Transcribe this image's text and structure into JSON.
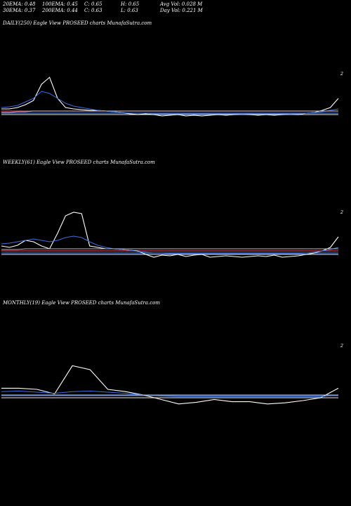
{
  "header": {
    "row1": [
      "20EMA: 0.48",
      "100EMA: 0.45",
      "C: 0.65",
      "H: 0.65",
      "Avg Vol: 0.028 M"
    ],
    "row2": [
      "30EMA: 0.37",
      "200EMA: 0.44",
      "C: 0.63",
      "L: 0.63",
      "Day Vol: 0.221 M"
    ]
  },
  "colors": {
    "price": "#ffffff",
    "ema_short": "#3a6fe0",
    "ema_long": "#e03a5a",
    "grey": "#bbbbbb",
    "divider": "#8a5a5a"
  },
  "chart_data": [
    {
      "type": "line",
      "title": "DAILY(250) Eagle   View  PROSEED charts MunafaSutra.com",
      "ytick": "2",
      "series": [
        {
          "values": [
            0.6,
            0.6,
            0.62,
            0.66,
            0.72,
            0.95,
            1.05,
            0.75,
            0.62,
            0.6,
            0.59,
            0.58,
            0.58,
            0.57,
            0.56,
            0.55,
            0.53,
            0.52,
            0.53,
            0.52,
            0.5,
            0.51,
            0.52,
            0.5,
            0.51,
            0.5,
            0.51,
            0.52,
            0.51,
            0.52,
            0.53,
            0.52,
            0.51,
            0.52,
            0.51,
            0.52,
            0.53,
            0.52,
            0.54,
            0.55,
            0.58,
            0.62,
            0.75
          ]
        },
        {
          "values": [
            0.62,
            0.63,
            0.65,
            0.7,
            0.75,
            0.85,
            0.82,
            0.75,
            0.68,
            0.64,
            0.62,
            0.6,
            0.58,
            0.57,
            0.56,
            0.55,
            0.54,
            0.54,
            0.54,
            0.53,
            0.53,
            0.53,
            0.53,
            0.53,
            0.53,
            0.53,
            0.53,
            0.53,
            0.53,
            0.53,
            0.53,
            0.53,
            0.53,
            0.53,
            0.53,
            0.53,
            0.53,
            0.53,
            0.54,
            0.55,
            0.56,
            0.58,
            0.6
          ]
        },
        {
          "values": [
            0.55,
            0.55,
            0.56,
            0.56,
            0.57,
            0.57,
            0.57,
            0.57,
            0.57,
            0.57,
            0.57,
            0.57,
            0.57,
            0.57,
            0.57,
            0.57,
            0.57,
            0.57,
            0.57,
            0.57,
            0.57,
            0.57,
            0.57,
            0.57,
            0.57,
            0.57,
            0.57,
            0.57,
            0.57,
            0.57,
            0.57,
            0.57,
            0.57,
            0.57,
            0.57,
            0.57,
            0.57,
            0.57,
            0.57,
            0.57,
            0.57,
            0.57,
            0.57
          ]
        }
      ]
    },
    {
      "type": "line",
      "title": "WEEKLY(61) Eagle   View  PROSEED charts MunafaSutra.com",
      "ytick": "2",
      "series": [
        {
          "values": [
            0.62,
            0.6,
            0.63,
            0.7,
            0.68,
            0.62,
            0.58,
            0.8,
            1.05,
            1.1,
            1.08,
            0.62,
            0.6,
            0.58,
            0.58,
            0.57,
            0.56,
            0.55,
            0.5,
            0.46,
            0.49,
            0.48,
            0.5,
            0.47,
            0.49,
            0.5,
            0.46,
            0.47,
            0.48,
            0.47,
            0.46,
            0.47,
            0.48,
            0.47,
            0.49,
            0.46,
            0.47,
            0.48,
            0.5,
            0.52,
            0.55,
            0.6,
            0.75
          ]
        },
        {
          "values": [
            0.65,
            0.66,
            0.68,
            0.7,
            0.72,
            0.7,
            0.68,
            0.7,
            0.74,
            0.76,
            0.74,
            0.68,
            0.63,
            0.6,
            0.58,
            0.57,
            0.56,
            0.54,
            0.53,
            0.52,
            0.52,
            0.51,
            0.51,
            0.51,
            0.51,
            0.51,
            0.51,
            0.51,
            0.51,
            0.51,
            0.51,
            0.51,
            0.51,
            0.51,
            0.51,
            0.51,
            0.51,
            0.51,
            0.52,
            0.53,
            0.55,
            0.57,
            0.6
          ]
        },
        {
          "values": [
            0.57,
            0.57,
            0.57,
            0.58,
            0.58,
            0.58,
            0.58,
            0.58,
            0.58,
            0.58,
            0.58,
            0.58,
            0.58,
            0.58,
            0.58,
            0.58,
            0.58,
            0.58,
            0.58,
            0.58,
            0.58,
            0.58,
            0.58,
            0.58,
            0.58,
            0.58,
            0.58,
            0.58,
            0.58,
            0.58,
            0.58,
            0.58,
            0.58,
            0.58,
            0.58,
            0.58,
            0.58,
            0.58,
            0.58,
            0.58,
            0.58,
            0.58,
            0.58
          ]
        }
      ]
    },
    {
      "type": "line",
      "title": "MONTHLY(19) Eagle   View  PROSEED charts MunafaSutra.com",
      "ytick": "2",
      "series": [
        {
          "values": [
            0.72,
            0.72,
            0.7,
            0.62,
            1.12,
            1.05,
            0.7,
            0.66,
            0.6,
            0.52,
            0.44,
            0.47,
            0.52,
            0.48,
            0.48,
            0.44,
            0.46,
            0.5,
            0.55,
            0.72
          ]
        },
        {
          "values": [
            0.66,
            0.67,
            0.65,
            0.63,
            0.66,
            0.67,
            0.65,
            0.63,
            0.6,
            0.58,
            0.57,
            0.57,
            0.57,
            0.57,
            0.57,
            0.57,
            0.57,
            0.57,
            0.57,
            0.6
          ]
        },
        {
          "values": [
            0.6,
            0.6,
            0.6,
            0.6,
            0.6,
            0.6,
            0.6,
            0.6,
            0.6,
            0.6,
            0.6,
            0.6,
            0.6,
            0.6,
            0.6,
            0.6,
            0.6,
            0.6,
            0.6,
            0.6
          ]
        }
      ]
    }
  ]
}
